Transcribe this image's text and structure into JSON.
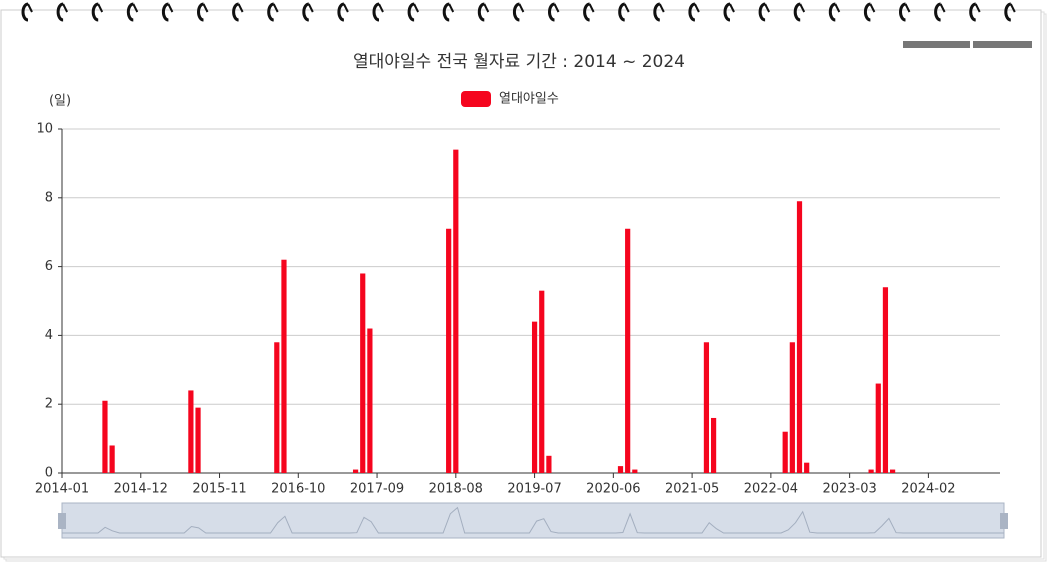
{
  "chart_data": {
    "type": "bar",
    "title": "열대야일수 전국 월자료 기간 : 2014 ~ 2024",
    "y_label": "(일)",
    "categories": [
      "2014-01",
      null,
      null,
      null,
      null,
      null,
      null,
      null,
      null,
      null,
      null,
      "2014-12",
      null,
      null,
      null,
      null,
      null,
      null,
      null,
      null,
      null,
      null,
      "2015-11",
      null,
      null,
      null,
      null,
      null,
      null,
      null,
      null,
      null,
      null,
      "2016-10",
      null,
      null,
      null,
      null,
      null,
      null,
      null,
      null,
      null,
      null,
      "2017-09",
      null,
      null,
      null,
      null,
      null,
      null,
      null,
      null,
      null,
      null,
      "2018-08",
      null,
      null,
      null,
      null,
      null,
      null,
      null,
      null,
      null,
      null,
      "2019-07",
      null,
      null,
      null,
      null,
      null,
      null,
      null,
      null,
      null,
      null,
      "2020-06",
      null,
      null,
      null,
      null,
      null,
      null,
      null,
      null,
      null,
      null,
      "2021-05",
      null,
      null,
      null,
      null,
      null,
      null,
      null,
      null,
      null,
      null,
      "2022-04",
      null,
      null,
      null,
      null,
      null,
      null,
      null,
      null,
      null,
      null,
      "2023-03",
      null,
      null,
      null,
      null,
      null,
      null,
      null,
      null,
      null,
      null,
      "2024-02",
      null,
      null,
      null,
      null,
      null,
      null,
      null,
      null,
      null,
      null
    ],
    "series": [
      {
        "name": "열대야일수",
        "color": "#f5051e",
        "values": [
          0,
          0,
          0,
          0,
          0,
          0,
          2.1,
          0.8,
          0,
          0,
          0,
          0,
          0,
          0,
          0,
          0,
          0,
          0,
          2.4,
          1.9,
          0,
          0,
          0,
          0,
          0,
          0,
          0,
          0,
          0,
          0,
          3.8,
          6.2,
          0,
          0,
          0,
          0,
          0,
          0,
          0,
          0,
          0,
          0.1,
          5.8,
          4.2,
          0,
          0,
          0,
          0,
          0,
          0,
          0,
          0,
          0,
          0,
          7.1,
          9.4,
          0,
          0,
          0,
          0,
          0,
          0,
          0,
          0,
          0,
          0,
          4.4,
          5.3,
          0.5,
          0,
          0,
          0,
          0,
          0,
          0,
          0,
          0,
          0,
          0.2,
          7.1,
          0.1,
          0,
          0,
          0,
          0,
          0,
          0,
          0,
          0,
          0,
          3.8,
          1.6,
          0,
          0,
          0,
          0,
          0,
          0,
          0,
          0,
          0,
          1.2,
          3.8,
          7.9,
          0.3,
          0,
          0,
          0,
          0,
          0,
          0,
          0,
          0,
          0.1,
          2.6,
          5.4,
          0.1,
          0,
          0,
          0,
          0,
          0,
          0,
          0,
          0,
          0,
          0,
          0,
          0,
          0,
          0,
          0
        ]
      }
    ],
    "ylim": [
      0,
      10
    ],
    "yticks": [
      0,
      2,
      4,
      6,
      8,
      10
    ],
    "grid": true,
    "legend": "top"
  }
}
